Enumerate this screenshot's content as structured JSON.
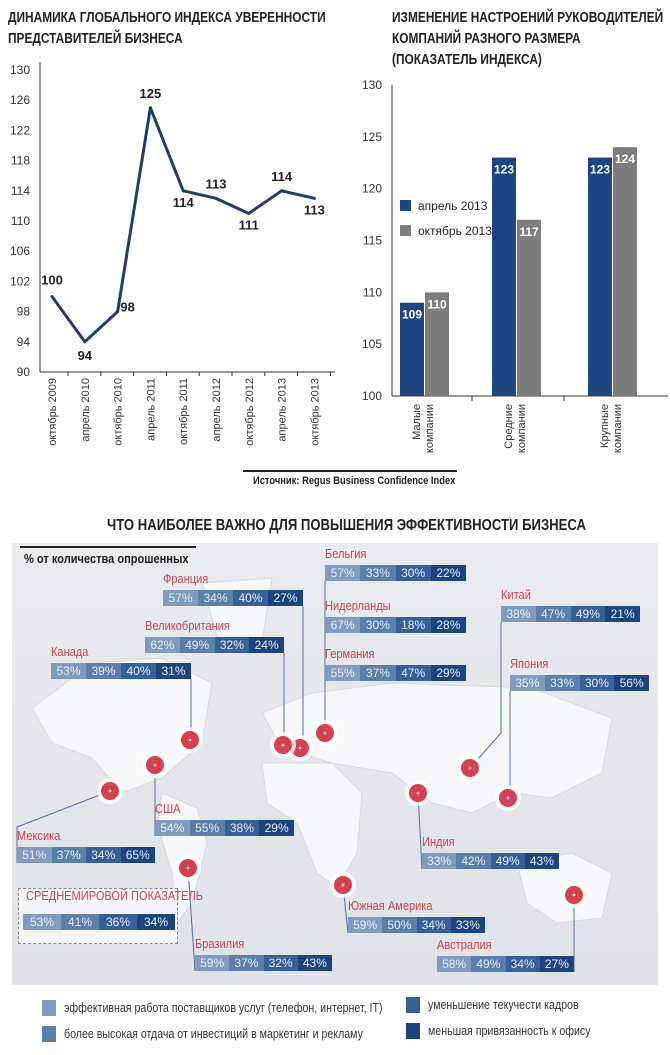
{
  "chart_data": [
    {
      "type": "line",
      "title": "ДИНАМИКА ГЛОБАЛЬНОГО ИНДЕКСА УВЕРЕННОСТИ ПРЕДСТАВИТЕЛЕЙ БИЗНЕСА",
      "title_lines": [
        "ДИНАМИКА ГЛОБАЛЬНОГО ИНДЕКСА УВЕРЕННОСТИ",
        "ПРЕДСТАВИТЕЛЕЙ БИЗНЕСА"
      ],
      "categories": [
        "октябрь 2009",
        "апрель 2010",
        "октябрь 2010",
        "апрель 2011",
        "октябрь 2011",
        "апрель 2012",
        "октябрь 2012",
        "апрель 2013",
        "октябрь 2013"
      ],
      "values": [
        100,
        94,
        98,
        125,
        114,
        113,
        111,
        114,
        113
      ],
      "yticks": [
        130,
        126,
        122,
        118,
        114,
        110,
        106,
        102,
        98,
        94,
        90
      ],
      "ylim": [
        90,
        130
      ],
      "color": "#1d3f6e",
      "grid": false
    },
    {
      "type": "bar",
      "title": "ИЗМЕНЕНИЕ НАСТРОЕНИЙ РУКОВОДИТЕЛЕЙ КОМПАНИЙ РАЗНОГО РАЗМЕРА (ПОКАЗАТЕЛЬ ИНДЕКСА)",
      "title_lines": [
        "ИЗМЕНЕНИЕ НАСТРОЕНИЙ РУКОВОДИТЕЛЕЙ",
        "КОМПАНИЙ РАЗНОГО РАЗМЕРА",
        "(ПОКАЗАТЕЛЬ ИНДЕКСА)"
      ],
      "categories": [
        "Малые компании",
        "Средние компании",
        "Крупные компании"
      ],
      "category_lines": [
        [
          "Малые",
          "компании"
        ],
        [
          "Средние",
          "компании"
        ],
        [
          "Крупные",
          "компании"
        ]
      ],
      "series": [
        {
          "name": "апрель 2013",
          "values": [
            109,
            123,
            123
          ],
          "color": "#1d4680"
        },
        {
          "name": "октябрь 2013",
          "values": [
            110,
            117,
            124
          ],
          "color": "#7d7d7d"
        }
      ],
      "yticks": [
        130,
        125,
        120,
        115,
        110,
        105,
        100
      ],
      "ylim": [
        100,
        130
      ],
      "legend": "left-middle",
      "grid": false
    }
  ],
  "source": "Источник: Regus Business Confidence Index",
  "map": {
    "title": "ЧТО НАИБОЛЕЕ ВАЖНО ДЛЯ ПОВЫШЕНИЯ ЭФФЕКТИВНОСТИ БИЗНЕСА",
    "unit_label": "% от количества опрошенных",
    "colors": [
      "#7f9cc0",
      "#5b7fab",
      "#35609a",
      "#1c4580"
    ],
    "marker_color": "#d8404f",
    "countries": [
      {
        "name": "Франция",
        "values": [
          "57%",
          "34%",
          "40%",
          "27%"
        ]
      },
      {
        "name": "Великобритания",
        "values": [
          "62%",
          "49%",
          "32%",
          "24%"
        ]
      },
      {
        "name": "Канада",
        "values": [
          "53%",
          "39%",
          "40%",
          "31%"
        ]
      },
      {
        "name": "Бельгия",
        "values": [
          "57%",
          "33%",
          "30%",
          "22%"
        ]
      },
      {
        "name": "Нидерланды",
        "values": [
          "67%",
          "30%",
          "18%",
          "28%"
        ]
      },
      {
        "name": "Германия",
        "values": [
          "55%",
          "37%",
          "47%",
          "29%"
        ]
      },
      {
        "name": "Китай",
        "values": [
          "38%",
          "47%",
          "49%",
          "21%"
        ]
      },
      {
        "name": "Япония",
        "values": [
          "35%",
          "33%",
          "30%",
          "56%"
        ]
      },
      {
        "name": "США",
        "values": [
          "54%",
          "55%",
          "38%",
          "29%"
        ]
      },
      {
        "name": "Мексика",
        "values": [
          "51%",
          "37%",
          "34%",
          "65%"
        ]
      },
      {
        "name": "Индия",
        "values": [
          "33%",
          "42%",
          "49%",
          "43%"
        ]
      },
      {
        "name": "Южная Америка",
        "values": [
          "59%",
          "50%",
          "34%",
          "33%"
        ]
      },
      {
        "name": "СРЕДНЕМИРОВОЙ ПОКАЗАТЕЛЬ",
        "values": [
          "53%",
          "41%",
          "36%",
          "34%"
        ]
      },
      {
        "name": "Бразилия",
        "values": [
          "59%",
          "37%",
          "32%",
          "43%"
        ]
      },
      {
        "name": "Австралия",
        "values": [
          "58%",
          "49%",
          "34%",
          "27%"
        ]
      }
    ],
    "legend": [
      "эффективная работа поставщиков услуг (телефон, интернет, IT)",
      "более высокая отдача от инвестиций в маркетинг и рекламу",
      "уменьшение текучести кадров",
      "меньшая привязанность к офису"
    ]
  }
}
